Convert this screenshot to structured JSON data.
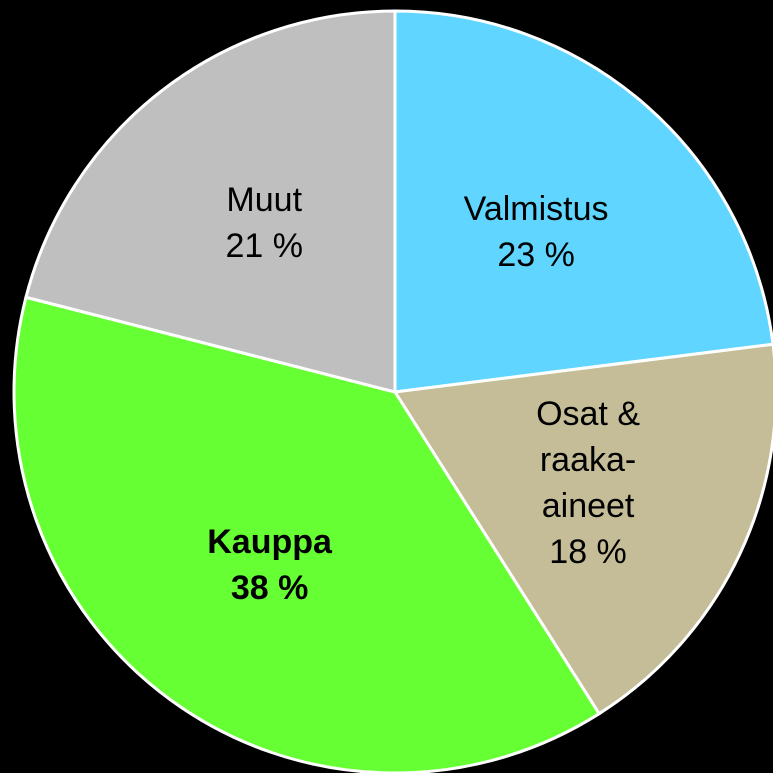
{
  "chart_data": {
    "type": "pie",
    "categories": [
      "Valmistus",
      "Osat &\nraaka-aineet",
      "Kauppa",
      "Muut"
    ],
    "values": [
      23,
      18,
      38,
      21
    ],
    "value_labels": [
      "23 %",
      "18 %",
      "38 %",
      "21 %"
    ],
    "colors": [
      "#5fd5ff",
      "#c4bd97",
      "#66ff33",
      "#bfbfbf"
    ],
    "highlight": 2,
    "background": "#000000"
  }
}
